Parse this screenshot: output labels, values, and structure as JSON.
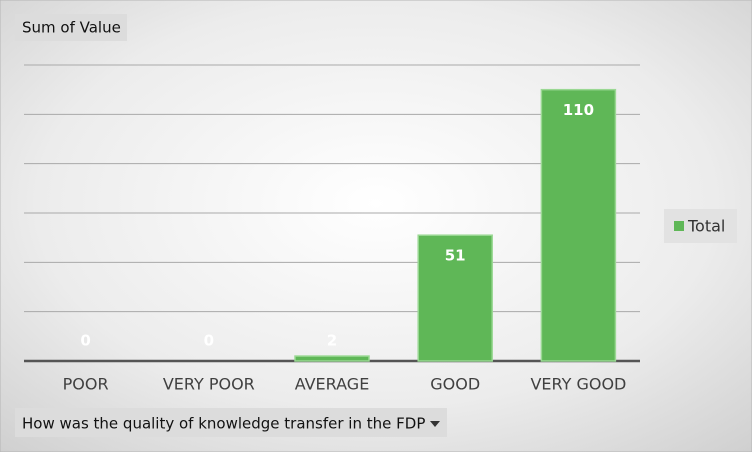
{
  "chart_data": {
    "type": "bar",
    "title": "Sum of Value",
    "categories": [
      "POOR",
      "VERY POOR",
      "AVERAGE",
      "GOOD",
      "VERY GOOD"
    ],
    "series": [
      {
        "name": "Total",
        "color": "#5fb757",
        "values": [
          0,
          0,
          2,
          51,
          110
        ]
      }
    ],
    "ylim": [
      0,
      120
    ],
    "yticks": [
      0,
      20,
      40,
      60,
      80,
      100,
      120
    ],
    "grid": true,
    "legend": "right",
    "x_label": "How was the quality of knowledge transfer in the FDP"
  }
}
